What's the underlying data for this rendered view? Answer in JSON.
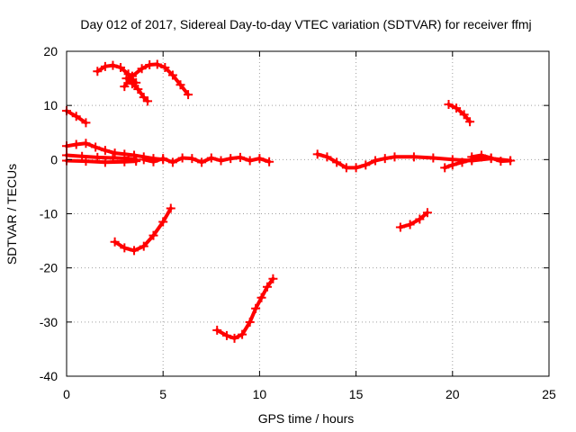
{
  "chart_data": {
    "type": "scatter",
    "title": "Day 012 of 2017, Sidereal Day-to-day VTEC variation (SDTVAR) for receiver ffmj",
    "xlabel": "GPS time / hours",
    "ylabel": "SDTVAR / TECUs",
    "xlim": [
      0,
      25
    ],
    "ylim": [
      -40,
      20
    ],
    "xticks": [
      0,
      5,
      10,
      15,
      20,
      25
    ],
    "yticks": [
      -40,
      -30,
      -20,
      -10,
      0,
      10,
      20
    ],
    "xtick_labels": [
      "0",
      "5",
      "10",
      "15",
      "20",
      "25"
    ],
    "ytick_labels": [
      "-40",
      "-30",
      "-20",
      "-10",
      "0",
      "10",
      "20"
    ],
    "grid": true,
    "marker": "plus",
    "color": "#ff0000",
    "series": [
      {
        "x": [
          0.0,
          0.5,
          1.0
        ],
        "y": [
          9.0,
          8.0,
          6.8
        ]
      },
      {
        "x": [
          1.6,
          2.0,
          2.4,
          2.8,
          3.2,
          3.6
        ],
        "y": [
          16.3,
          17.2,
          17.4,
          17.0,
          15.8,
          14.2
        ]
      },
      {
        "x": [
          3.1,
          3.4,
          3.7,
          4.0,
          4.2
        ],
        "y": [
          15.0,
          14.0,
          13.0,
          11.5,
          10.8
        ]
      },
      {
        "x": [
          3.0,
          3.4,
          3.9,
          4.3,
          4.7,
          5.1,
          5.5,
          5.9,
          6.3
        ],
        "y": [
          13.5,
          15.4,
          16.8,
          17.5,
          17.6,
          17.0,
          15.6,
          13.8,
          12.0
        ]
      },
      {
        "x": [
          0.0,
          0.5,
          1.0,
          1.5,
          2.0,
          2.5,
          3.0,
          3.5,
          4.0,
          4.5,
          5.0
        ],
        "y": [
          2.5,
          2.8,
          3.0,
          2.3,
          1.7,
          1.2,
          1.0,
          0.8,
          0.5,
          0.2,
          0.0
        ]
      },
      {
        "x": [
          0.0,
          0.8,
          1.6,
          2.4,
          3.2,
          3.6
        ],
        "y": [
          0.8,
          0.6,
          0.4,
          0.3,
          0.2,
          0.0
        ]
      },
      {
        "x": [
          0.0,
          1.0,
          2.0,
          3.0,
          3.6
        ],
        "y": [
          -0.2,
          -0.3,
          -0.5,
          -0.4,
          -0.3
        ]
      },
      {
        "x": [
          4.0,
          4.5,
          5.0,
          5.5,
          6.0,
          6.5,
          7.0,
          7.5,
          8.0,
          8.5,
          9.0,
          9.5,
          10.0,
          10.5
        ],
        "y": [
          0.0,
          -0.4,
          0.2,
          -0.5,
          0.3,
          0.2,
          -0.5,
          0.3,
          -0.2,
          0.2,
          0.4,
          -0.2,
          0.2,
          -0.4
        ]
      },
      {
        "x": [
          2.5,
          3.0,
          3.5,
          4.0,
          4.5,
          5.0,
          5.4
        ],
        "y": [
          -15.2,
          -16.3,
          -16.8,
          -16.0,
          -14.0,
          -11.5,
          -9.0
        ]
      },
      {
        "x": [
          7.8,
          8.3,
          8.7,
          9.1,
          9.5,
          9.8,
          10.1,
          10.4,
          10.7
        ],
        "y": [
          -31.5,
          -32.5,
          -33.0,
          -32.3,
          -30.0,
          -27.5,
          -25.5,
          -23.5,
          -22.0
        ]
      },
      {
        "x": [
          13.0,
          13.5,
          14.0,
          14.5,
          15.0,
          15.5,
          16.0,
          16.5,
          17.0,
          18.0,
          19.0,
          20.0,
          21.0,
          22.0,
          23.0
        ],
        "y": [
          1.0,
          0.5,
          -0.5,
          -1.5,
          -1.5,
          -1.0,
          -0.2,
          0.2,
          0.5,
          0.5,
          0.3,
          0.0,
          -0.2,
          0.2,
          -0.2
        ]
      },
      {
        "x": [
          19.6,
          20.0,
          20.5,
          21.0,
          21.5
        ],
        "y": [
          -1.5,
          -1.0,
          -0.5,
          0.0,
          0.5
        ]
      },
      {
        "x": [
          21.0,
          21.5,
          22.0,
          22.5,
          23.0
        ],
        "y": [
          0.5,
          0.8,
          0.3,
          -0.3,
          -0.2
        ]
      },
      {
        "x": [
          19.8,
          20.2,
          20.6,
          20.9
        ],
        "y": [
          10.2,
          9.5,
          8.3,
          7.0
        ]
      },
      {
        "x": [
          17.3,
          17.8,
          18.3,
          18.7
        ],
        "y": [
          -12.5,
          -12.0,
          -11.0,
          -9.8
        ]
      }
    ]
  }
}
